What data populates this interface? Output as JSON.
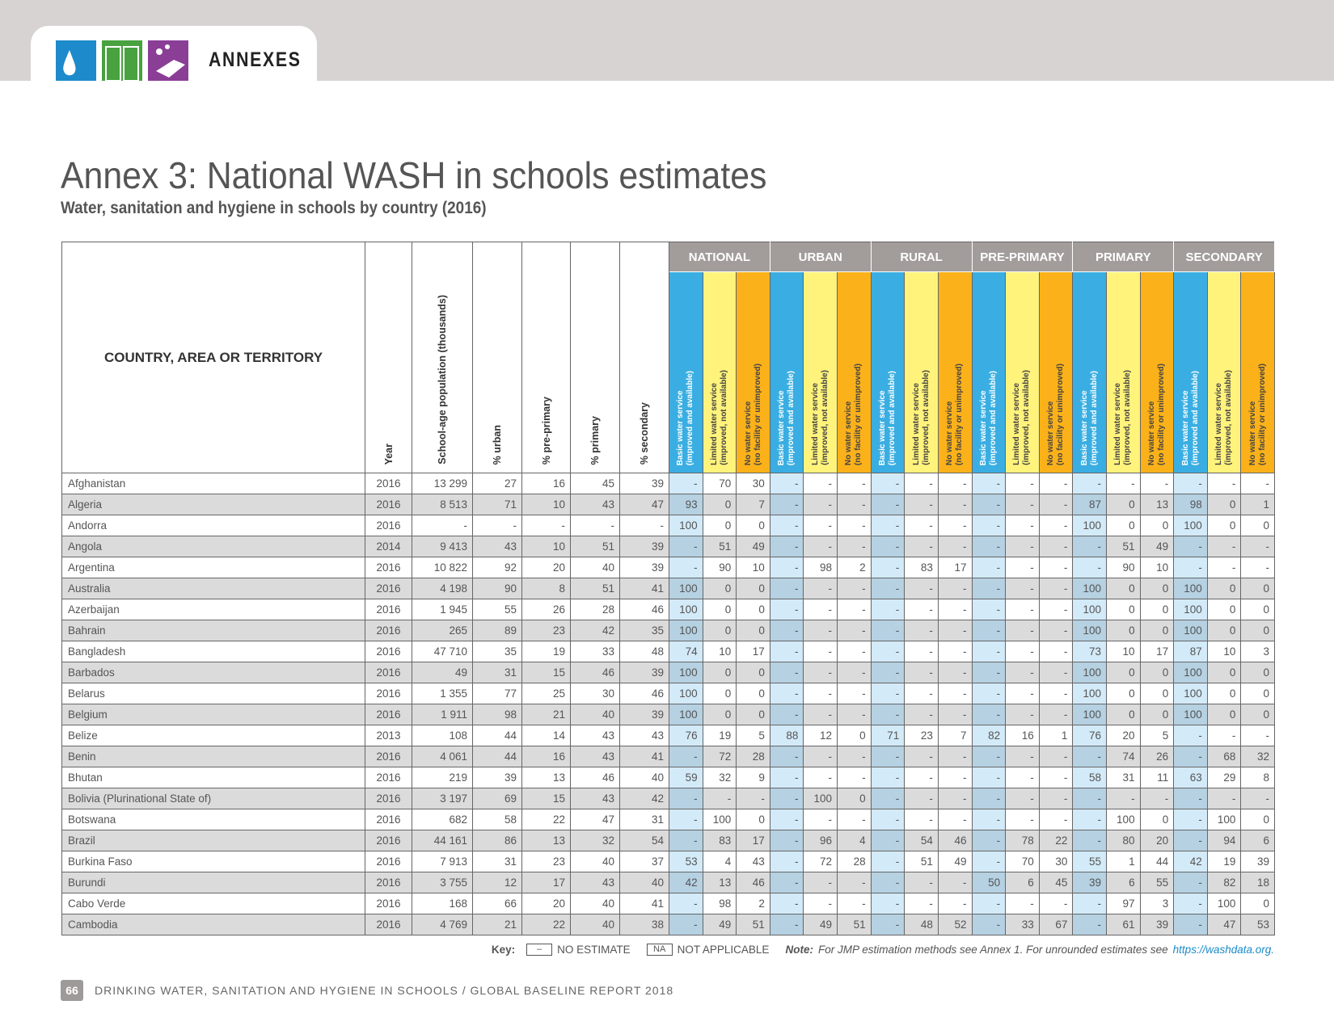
{
  "header": {
    "section": "ANNEXES"
  },
  "title": "Annex 3: National WASH in schools estimates",
  "subtitle": "Water, sanitation and hygiene in schools by country (2016)",
  "table": {
    "columns": [
      "COUNTRY, AREA OR TERRITORY",
      "Year",
      "School-age population (thousands)",
      "% urban",
      "% pre-primary",
      "% primary",
      "% secondary"
    ],
    "groups": [
      "NATIONAL",
      "URBAN",
      "RURAL",
      "PRE-PRIMARY",
      "PRIMARY",
      "SECONDARY"
    ],
    "sub_headers": [
      [
        "Basic water service",
        "(improved and available)"
      ],
      [
        "Limited water service",
        "(improved, not available)"
      ],
      [
        "No water service",
        "(no facility or unimproved)"
      ]
    ],
    "rows": [
      [
        "Afghanistan",
        "2016",
        "13 299",
        "27",
        "16",
        "45",
        "39",
        "-",
        "70",
        "30",
        "-",
        "-",
        "-",
        "-",
        "-",
        "-",
        "-",
        "-",
        "-",
        "-",
        "-",
        "-",
        "-",
        "-",
        "-"
      ],
      [
        "Algeria",
        "2016",
        "8 513",
        "71",
        "10",
        "43",
        "47",
        "93",
        "0",
        "7",
        "-",
        "-",
        "-",
        "-",
        "-",
        "-",
        "-",
        "-",
        "-",
        "87",
        "0",
        "13",
        "98",
        "0",
        "1"
      ],
      [
        "Andorra",
        "2016",
        "-",
        "-",
        "-",
        "-",
        "-",
        "100",
        "0",
        "0",
        "-",
        "-",
        "-",
        "-",
        "-",
        "-",
        "-",
        "-",
        "-",
        "100",
        "0",
        "0",
        "100",
        "0",
        "0"
      ],
      [
        "Angola",
        "2014",
        "9 413",
        "43",
        "10",
        "51",
        "39",
        "-",
        "51",
        "49",
        "-",
        "-",
        "-",
        "-",
        "-",
        "-",
        "-",
        "-",
        "-",
        "-",
        "51",
        "49",
        "-",
        "-",
        "-"
      ],
      [
        "Argentina",
        "2016",
        "10 822",
        "92",
        "20",
        "40",
        "39",
        "-",
        "90",
        "10",
        "-",
        "98",
        "2",
        "-",
        "83",
        "17",
        "-",
        "-",
        "-",
        "-",
        "90",
        "10",
        "-",
        "-",
        "-"
      ],
      [
        "Australia",
        "2016",
        "4 198",
        "90",
        "8",
        "51",
        "41",
        "100",
        "0",
        "0",
        "-",
        "-",
        "-",
        "-",
        "-",
        "-",
        "-",
        "-",
        "-",
        "100",
        "0",
        "0",
        "100",
        "0",
        "0"
      ],
      [
        "Azerbaijan",
        "2016",
        "1 945",
        "55",
        "26",
        "28",
        "46",
        "100",
        "0",
        "0",
        "-",
        "-",
        "-",
        "-",
        "-",
        "-",
        "-",
        "-",
        "-",
        "100",
        "0",
        "0",
        "100",
        "0",
        "0"
      ],
      [
        "Bahrain",
        "2016",
        "265",
        "89",
        "23",
        "42",
        "35",
        "100",
        "0",
        "0",
        "-",
        "-",
        "-",
        "-",
        "-",
        "-",
        "-",
        "-",
        "-",
        "100",
        "0",
        "0",
        "100",
        "0",
        "0"
      ],
      [
        "Bangladesh",
        "2016",
        "47 710",
        "35",
        "19",
        "33",
        "48",
        "74",
        "10",
        "17",
        "-",
        "-",
        "-",
        "-",
        "-",
        "-",
        "-",
        "-",
        "-",
        "73",
        "10",
        "17",
        "87",
        "10",
        "3"
      ],
      [
        "Barbados",
        "2016",
        "49",
        "31",
        "15",
        "46",
        "39",
        "100",
        "0",
        "0",
        "-",
        "-",
        "-",
        "-",
        "-",
        "-",
        "-",
        "-",
        "-",
        "100",
        "0",
        "0",
        "100",
        "0",
        "0"
      ],
      [
        "Belarus",
        "2016",
        "1 355",
        "77",
        "25",
        "30",
        "46",
        "100",
        "0",
        "0",
        "-",
        "-",
        "-",
        "-",
        "-",
        "-",
        "-",
        "-",
        "-",
        "100",
        "0",
        "0",
        "100",
        "0",
        "0"
      ],
      [
        "Belgium",
        "2016",
        "1 911",
        "98",
        "21",
        "40",
        "39",
        "100",
        "0",
        "0",
        "-",
        "-",
        "-",
        "-",
        "-",
        "-",
        "-",
        "-",
        "-",
        "100",
        "0",
        "0",
        "100",
        "0",
        "0"
      ],
      [
        "Belize",
        "2013",
        "108",
        "44",
        "14",
        "43",
        "43",
        "76",
        "19",
        "5",
        "88",
        "12",
        "0",
        "71",
        "23",
        "7",
        "82",
        "16",
        "1",
        "76",
        "20",
        "5",
        "-",
        "-",
        "-"
      ],
      [
        "Benin",
        "2016",
        "4 061",
        "44",
        "16",
        "43",
        "41",
        "-",
        "72",
        "28",
        "-",
        "-",
        "-",
        "-",
        "-",
        "-",
        "-",
        "-",
        "-",
        "-",
        "74",
        "26",
        "-",
        "68",
        "32"
      ],
      [
        "Bhutan",
        "2016",
        "219",
        "39",
        "13",
        "46",
        "40",
        "59",
        "32",
        "9",
        "-",
        "-",
        "-",
        "-",
        "-",
        "-",
        "-",
        "-",
        "-",
        "58",
        "31",
        "11",
        "63",
        "29",
        "8"
      ],
      [
        "Bolivia (Plurinational State of)",
        "2016",
        "3 197",
        "69",
        "15",
        "43",
        "42",
        "-",
        "-",
        "-",
        "-",
        "100",
        "0",
        "-",
        "-",
        "-",
        "-",
        "-",
        "-",
        "-",
        "-",
        "-",
        "-",
        "-",
        "-"
      ],
      [
        "Botswana",
        "2016",
        "682",
        "58",
        "22",
        "47",
        "31",
        "-",
        "100",
        "0",
        "-",
        "-",
        "-",
        "-",
        "-",
        "-",
        "-",
        "-",
        "-",
        "-",
        "100",
        "0",
        "-",
        "100",
        "0"
      ],
      [
        "Brazil",
        "2016",
        "44 161",
        "86",
        "13",
        "32",
        "54",
        "-",
        "83",
        "17",
        "-",
        "96",
        "4",
        "-",
        "54",
        "46",
        "-",
        "78",
        "22",
        "-",
        "80",
        "20",
        "-",
        "94",
        "6"
      ],
      [
        "Burkina Faso",
        "2016",
        "7 913",
        "31",
        "23",
        "40",
        "37",
        "53",
        "4",
        "43",
        "-",
        "72",
        "28",
        "-",
        "51",
        "49",
        "-",
        "70",
        "30",
        "55",
        "1",
        "44",
        "42",
        "19",
        "39"
      ],
      [
        "Burundi",
        "2016",
        "3 755",
        "12",
        "17",
        "43",
        "40",
        "42",
        "13",
        "46",
        "-",
        "-",
        "-",
        "-",
        "-",
        "-",
        "50",
        "6",
        "45",
        "39",
        "6",
        "55",
        "-",
        "82",
        "18"
      ],
      [
        "Cabo Verde",
        "2016",
        "168",
        "66",
        "20",
        "40",
        "41",
        "-",
        "98",
        "2",
        "-",
        "-",
        "-",
        "-",
        "-",
        "-",
        "-",
        "-",
        "-",
        "-",
        "97",
        "3",
        "-",
        "100",
        "0"
      ],
      [
        "Cambodia",
        "2016",
        "4 769",
        "21",
        "22",
        "40",
        "38",
        "-",
        "49",
        "51",
        "-",
        "49",
        "51",
        "-",
        "48",
        "52",
        "-",
        "33",
        "67",
        "-",
        "61",
        "39",
        "-",
        "47",
        "53"
      ]
    ]
  },
  "key": {
    "label": "Key:",
    "no_estimate_symbol": "–",
    "no_estimate": "NO ESTIMATE",
    "na_symbol": "NA",
    "not_applicable": "NOT APPLICABLE",
    "note_label": "Note:",
    "note": "For JMP estimation methods see Annex 1. For unrounded estimates see",
    "link": "https://washdata.org."
  },
  "footer": {
    "page": "66",
    "text": "DRINKING WATER, SANITATION AND HYGIENE IN SCHOOLS / GLOBAL BASELINE REPORT 2018"
  }
}
